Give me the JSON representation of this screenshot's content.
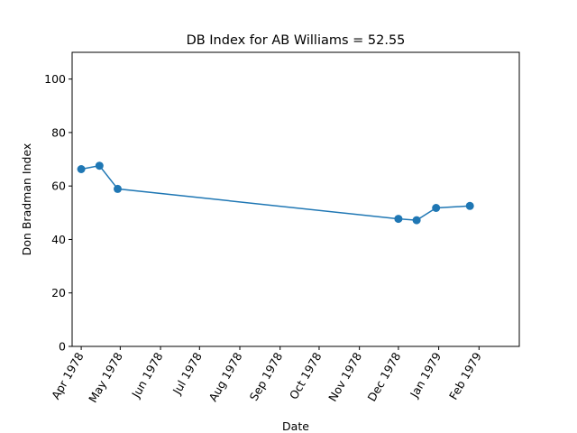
{
  "chart_data": {
    "type": "line",
    "title": "DB Index for AB Williams = 52.55",
    "xlabel": "Date",
    "ylabel": "Don Bradman Index",
    "ylim": [
      0,
      110
    ],
    "yticks": [
      0,
      20,
      40,
      60,
      80,
      100
    ],
    "xlim": [
      "1978-03-25",
      "1979-03-04"
    ],
    "xticks": [
      {
        "date": "1978-04-01",
        "label": "Apr 1978"
      },
      {
        "date": "1978-05-01",
        "label": "May 1978"
      },
      {
        "date": "1978-06-01",
        "label": "Jun 1978"
      },
      {
        "date": "1978-07-01",
        "label": "Jul 1978"
      },
      {
        "date": "1978-08-01",
        "label": "Aug 1978"
      },
      {
        "date": "1978-09-01",
        "label": "Sep 1978"
      },
      {
        "date": "1978-10-01",
        "label": "Oct 1978"
      },
      {
        "date": "1978-11-01",
        "label": "Nov 1978"
      },
      {
        "date": "1978-12-01",
        "label": "Dec 1978"
      },
      {
        "date": "1979-01-01",
        "label": "Jan 1979"
      },
      {
        "date": "1979-02-01",
        "label": "Feb 1979"
      }
    ],
    "grid": false,
    "series": [
      {
        "color": "#1f77b4",
        "points": [
          {
            "x": "1978-04-01",
            "y": 66.3
          },
          {
            "x": "1978-04-15",
            "y": 67.6
          },
          {
            "x": "1978-04-29",
            "y": 58.9
          },
          {
            "x": "1978-12-01",
            "y": 47.7
          },
          {
            "x": "1978-12-15",
            "y": 47.2
          },
          {
            "x": "1978-12-30",
            "y": 51.8
          },
          {
            "x": "1979-01-25",
            "y": 52.55
          }
        ]
      }
    ]
  }
}
